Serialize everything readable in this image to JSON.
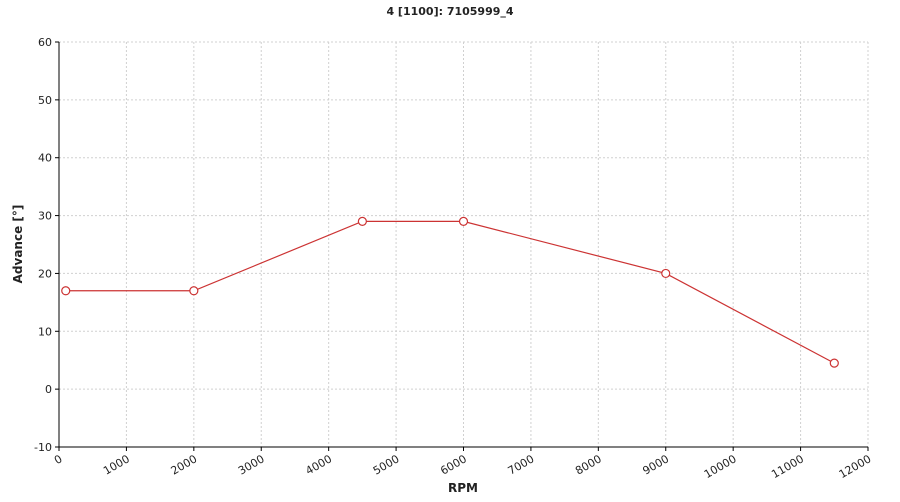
{
  "chart_data": {
    "type": "line",
    "title": "4 [1100]: 7105999_4",
    "x_label": "RPM",
    "y_label": "Advance [°]",
    "x": [
      100,
      2000,
      4500,
      6000,
      9000,
      11500
    ],
    "series": [
      {
        "color": "#cc3333",
        "values": [
          17,
          17,
          29,
          29,
          20,
          4.5
        ]
      }
    ],
    "xlim": [
      0,
      12000
    ],
    "xticks": [
      0,
      1000,
      2000,
      3000,
      4000,
      5000,
      6000,
      7000,
      8000,
      9000,
      10000,
      11000,
      12000
    ],
    "ylim": [
      -10,
      60
    ],
    "yticks": [
      -10,
      0,
      10,
      20,
      30,
      40,
      50,
      60
    ],
    "grid": true
  }
}
